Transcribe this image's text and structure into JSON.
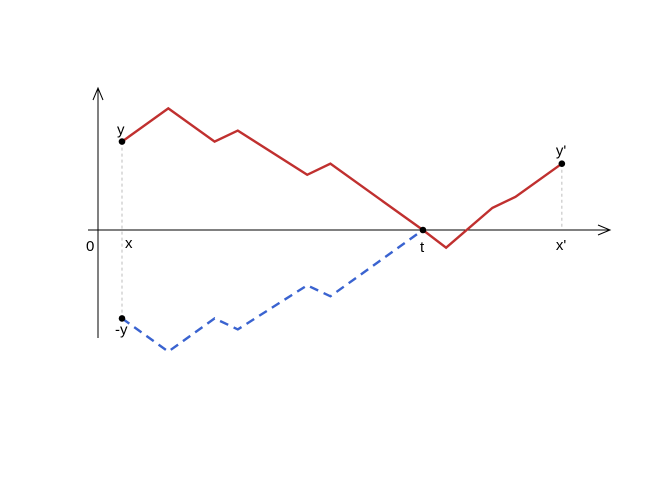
{
  "labels": {
    "origin": "0",
    "x": "x",
    "y": "y",
    "neg_y": "-y",
    "t": "t",
    "x_prime": "x'",
    "y_prime": "y'"
  },
  "colors": {
    "path": "#c0302f",
    "reflected": "#3a63d0",
    "axis": "#000000",
    "guide": "#bdbdbd"
  },
  "diagram": {
    "x_range": [
      0,
      20.5
    ],
    "y_range": [
      -4.8,
      6.0
    ],
    "points": {
      "x": 1,
      "y": 4,
      "t": 14,
      "x_prime": 20
    },
    "path": [
      [
        1,
        4
      ],
      [
        3,
        5.5
      ],
      [
        5,
        4
      ],
      [
        6,
        4.5
      ],
      [
        9,
        2.5
      ],
      [
        10,
        3
      ],
      [
        14,
        0
      ],
      [
        15,
        -0.8
      ],
      [
        17,
        1
      ],
      [
        18,
        1.5
      ],
      [
        20,
        3
      ]
    ],
    "reflected_path": [
      [
        1,
        -4
      ],
      [
        3,
        -5.5
      ],
      [
        5,
        -4
      ],
      [
        6,
        -4.5
      ],
      [
        9,
        -2.5
      ],
      [
        10,
        -3
      ],
      [
        14,
        0
      ]
    ]
  }
}
